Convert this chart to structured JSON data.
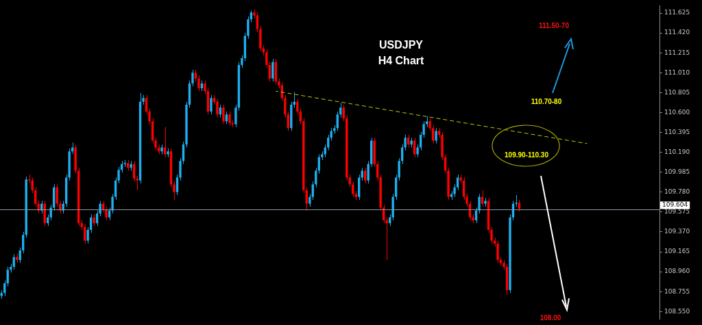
{
  "chart_data": {
    "type": "candlestick",
    "title": "USDJPY",
    "subtitle": "H4 Chart",
    "categories": [
      null,
      null,
      null,
      null,
      null,
      null,
      null,
      null,
      null,
      null,
      null,
      null,
      null,
      null,
      null,
      null,
      null,
      null,
      null,
      null,
      null,
      null,
      null,
      null,
      null,
      null,
      null,
      null,
      null,
      null,
      null,
      null,
      null,
      null,
      null,
      null,
      null,
      null,
      null,
      null,
      null,
      null,
      null,
      null,
      null,
      null,
      null,
      null,
      null,
      null,
      null,
      null,
      null,
      null,
      null,
      null,
      null,
      null,
      null,
      null,
      null,
      null,
      null,
      null,
      null,
      null,
      null,
      null,
      null,
      null,
      null,
      null,
      null,
      null,
      null,
      null,
      null,
      null,
      null,
      null,
      null,
      null,
      null,
      null,
      null,
      null,
      null,
      null,
      null,
      null,
      null,
      null,
      null,
      null,
      null,
      null,
      null,
      null,
      null,
      null,
      null,
      null,
      null,
      null,
      null,
      null,
      null,
      null,
      null,
      null,
      null,
      null,
      null,
      null,
      null,
      null,
      null,
      null,
      null,
      null,
      null,
      null,
      null,
      null,
      null,
      null,
      null,
      null,
      null,
      null,
      null,
      null,
      null,
      null,
      null,
      null,
      null,
      null,
      null,
      null,
      null,
      null,
      null,
      null,
      null,
      null,
      null,
      null,
      null,
      null,
      null,
      null,
      null,
      null,
      null,
      null,
      null,
      null,
      null,
      null,
      null,
      null,
      null,
      null,
      null,
      null,
      null,
      null,
      null,
      null,
      null,
      null,
      null,
      null,
      null,
      null,
      null,
      null,
      null,
      null,
      null,
      null,
      null,
      null,
      null,
      null,
      null,
      null,
      null,
      null,
      null,
      null,
      null,
      null,
      null,
      null,
      null,
      null,
      null,
      null,
      null,
      null,
      null,
      null,
      null,
      null,
      null,
      null,
      null,
      null,
      null,
      null,
      null,
      null
    ],
    "ohlc": [
      [
        108.71,
        108.77,
        108.68,
        108.74
      ],
      [
        108.74,
        108.87,
        108.71,
        108.84
      ],
      [
        108.84,
        109.01,
        108.81,
        108.98
      ],
      [
        108.98,
        109.04,
        108.95,
        109.01
      ],
      [
        109.01,
        109.14,
        108.98,
        109.11
      ],
      [
        109.11,
        109.14,
        109.05,
        109.08
      ],
      [
        109.08,
        109.21,
        109.05,
        109.18
      ],
      [
        109.18,
        109.37,
        109.15,
        109.34
      ],
      [
        109.34,
        109.94,
        109.31,
        109.91
      ],
      [
        109.91,
        109.96,
        109.87,
        109.9
      ],
      [
        109.9,
        109.93,
        109.77,
        109.8
      ],
      [
        109.8,
        109.83,
        109.63,
        109.66
      ],
      [
        109.66,
        109.69,
        109.56,
        109.59
      ],
      [
        109.59,
        109.69,
        109.56,
        109.66
      ],
      [
        109.66,
        109.69,
        109.43,
        109.46
      ],
      [
        109.46,
        109.55,
        109.43,
        109.52
      ],
      [
        109.52,
        109.65,
        109.49,
        109.62
      ],
      [
        109.62,
        109.86,
        109.59,
        109.83
      ],
      [
        109.83,
        109.86,
        109.63,
        109.66
      ],
      [
        109.66,
        109.69,
        109.56,
        109.59
      ],
      [
        109.59,
        109.69,
        109.56,
        109.66
      ],
      [
        109.66,
        109.96,
        109.63,
        109.93
      ],
      [
        109.93,
        110.23,
        109.9,
        110.2
      ],
      [
        110.2,
        110.29,
        110.17,
        110.24
      ],
      [
        110.24,
        110.27,
        109.97,
        110.0
      ],
      [
        110.0,
        110.03,
        109.43,
        109.46
      ],
      [
        109.46,
        109.49,
        109.39,
        109.42
      ],
      [
        109.42,
        109.45,
        109.25,
        109.28
      ],
      [
        109.28,
        109.42,
        109.25,
        109.39
      ],
      [
        109.39,
        109.55,
        109.36,
        109.52
      ],
      [
        109.52,
        109.55,
        109.43,
        109.46
      ],
      [
        109.46,
        109.59,
        109.43,
        109.56
      ],
      [
        109.56,
        109.69,
        109.53,
        109.66
      ],
      [
        109.66,
        109.69,
        109.57,
        109.6
      ],
      [
        109.6,
        109.63,
        109.49,
        109.52
      ],
      [
        109.52,
        109.62,
        109.49,
        109.59
      ],
      [
        109.59,
        109.76,
        109.56,
        109.73
      ],
      [
        109.73,
        109.93,
        109.7,
        109.9
      ],
      [
        109.9,
        110.04,
        109.87,
        110.01
      ],
      [
        110.01,
        110.1,
        109.98,
        110.07
      ],
      [
        110.07,
        110.11,
        110.04,
        110.08
      ],
      [
        110.08,
        110.11,
        110.0,
        110.03
      ],
      [
        110.03,
        110.1,
        110.0,
        110.07
      ],
      [
        110.07,
        110.1,
        109.89,
        109.92
      ],
      [
        109.92,
        109.95,
        109.8,
        109.9
      ],
      [
        109.9,
        110.8,
        109.87,
        110.71
      ],
      [
        110.71,
        110.78,
        110.68,
        110.75
      ],
      [
        110.75,
        110.78,
        110.58,
        110.61
      ],
      [
        110.61,
        110.64,
        110.48,
        110.51
      ],
      [
        110.51,
        110.54,
        110.28,
        110.31
      ],
      [
        110.31,
        110.34,
        110.21,
        110.24
      ],
      [
        110.24,
        110.27,
        110.17,
        110.2
      ],
      [
        110.2,
        110.27,
        110.17,
        110.24
      ],
      [
        110.24,
        110.45,
        110.14,
        110.17
      ],
      [
        110.17,
        110.23,
        110.14,
        110.2
      ],
      [
        110.2,
        110.23,
        109.83,
        109.86
      ],
      [
        109.86,
        109.89,
        109.7,
        109.78
      ],
      [
        109.78,
        109.96,
        109.75,
        109.93
      ],
      [
        109.93,
        110.13,
        109.9,
        110.1
      ],
      [
        110.1,
        110.3,
        110.07,
        110.27
      ],
      [
        110.27,
        110.71,
        110.24,
        110.68
      ],
      [
        110.68,
        110.93,
        110.65,
        110.9
      ],
      [
        110.9,
        111.04,
        110.87,
        111.01
      ],
      [
        111.01,
        111.04,
        110.92,
        110.95
      ],
      [
        110.95,
        110.98,
        110.82,
        110.85
      ],
      [
        110.85,
        110.93,
        110.82,
        110.9
      ],
      [
        110.9,
        110.93,
        110.79,
        110.82
      ],
      [
        110.82,
        110.85,
        110.58,
        110.61
      ],
      [
        110.61,
        110.78,
        110.58,
        110.75
      ],
      [
        110.75,
        110.78,
        110.68,
        110.71
      ],
      [
        110.71,
        110.74,
        110.55,
        110.58
      ],
      [
        110.58,
        110.68,
        110.55,
        110.65
      ],
      [
        110.65,
        110.68,
        110.48,
        110.51
      ],
      [
        110.51,
        110.61,
        110.48,
        110.58
      ],
      [
        110.58,
        110.61,
        110.46,
        110.49
      ],
      [
        110.49,
        110.52,
        110.45,
        110.48
      ],
      [
        110.48,
        110.68,
        110.45,
        110.65
      ],
      [
        110.65,
        111.12,
        110.62,
        111.09
      ],
      [
        111.09,
        111.19,
        111.06,
        111.16
      ],
      [
        111.16,
        111.42,
        111.13,
        111.39
      ],
      [
        111.39,
        111.59,
        111.36,
        111.56
      ],
      [
        111.56,
        111.65,
        111.53,
        111.63
      ],
      [
        111.63,
        111.66,
        111.57,
        111.6
      ],
      [
        111.6,
        111.63,
        111.43,
        111.46
      ],
      [
        111.46,
        111.49,
        111.23,
        111.26
      ],
      [
        111.26,
        111.29,
        111.19,
        111.22
      ],
      [
        111.22,
        111.25,
        111.06,
        111.09
      ],
      [
        111.09,
        111.12,
        110.92,
        110.95
      ],
      [
        110.95,
        111.15,
        110.92,
        111.12
      ],
      [
        111.12,
        111.15,
        110.89,
        110.92
      ],
      [
        110.92,
        110.95,
        110.85,
        110.88
      ],
      [
        110.88,
        110.91,
        110.72,
        110.75
      ],
      [
        110.75,
        110.78,
        110.55,
        110.58
      ],
      [
        110.58,
        110.61,
        110.41,
        110.44
      ],
      [
        110.44,
        110.71,
        110.41,
        110.68
      ],
      [
        110.68,
        110.81,
        110.65,
        110.71
      ],
      [
        110.71,
        110.74,
        110.58,
        110.61
      ],
      [
        110.61,
        110.64,
        110.48,
        110.51
      ],
      [
        110.51,
        110.54,
        109.77,
        109.8
      ],
      [
        109.8,
        109.83,
        109.59,
        109.66
      ],
      [
        109.66,
        109.76,
        109.63,
        109.73
      ],
      [
        109.73,
        109.89,
        109.7,
        109.86
      ],
      [
        109.86,
        110.03,
        109.83,
        110.0
      ],
      [
        110.0,
        110.17,
        109.97,
        110.14
      ],
      [
        110.14,
        110.2,
        110.11,
        110.17
      ],
      [
        110.17,
        110.27,
        110.14,
        110.24
      ],
      [
        110.24,
        110.37,
        110.21,
        110.34
      ],
      [
        110.34,
        110.44,
        110.31,
        110.41
      ],
      [
        110.41,
        110.47,
        110.38,
        110.44
      ],
      [
        110.44,
        110.61,
        110.41,
        110.58
      ],
      [
        110.58,
        110.7,
        110.55,
        110.65
      ],
      [
        110.65,
        110.68,
        110.51,
        110.54
      ],
      [
        110.54,
        110.57,
        109.9,
        109.93
      ],
      [
        109.93,
        109.96,
        109.83,
        109.86
      ],
      [
        109.86,
        109.89,
        109.73,
        109.76
      ],
      [
        109.76,
        109.79,
        109.7,
        109.73
      ],
      [
        109.73,
        109.96,
        109.7,
        109.93
      ],
      [
        109.93,
        110.03,
        109.9,
        110.0
      ],
      [
        110.0,
        110.03,
        109.87,
        109.9
      ],
      [
        109.9,
        110.1,
        109.87,
        110.07
      ],
      [
        110.07,
        110.34,
        110.04,
        110.31
      ],
      [
        110.31,
        110.34,
        110.04,
        110.07
      ],
      [
        110.07,
        110.1,
        109.9,
        109.93
      ],
      [
        109.93,
        109.96,
        109.59,
        109.62
      ],
      [
        109.62,
        109.65,
        109.46,
        109.49
      ],
      [
        109.49,
        109.52,
        109.08,
        109.46
      ],
      [
        109.46,
        109.55,
        109.43,
        109.52
      ],
      [
        109.52,
        109.76,
        109.49,
        109.73
      ],
      [
        109.73,
        109.96,
        109.7,
        109.93
      ],
      [
        109.93,
        110.13,
        109.9,
        110.1
      ],
      [
        110.1,
        110.27,
        110.07,
        110.24
      ],
      [
        110.24,
        110.37,
        110.21,
        110.34
      ],
      [
        110.34,
        110.37,
        110.24,
        110.27
      ],
      [
        110.27,
        110.34,
        110.24,
        110.31
      ],
      [
        110.31,
        110.34,
        110.14,
        110.17
      ],
      [
        110.17,
        110.27,
        110.14,
        110.24
      ],
      [
        110.24,
        110.4,
        110.21,
        110.37
      ],
      [
        110.37,
        110.51,
        110.34,
        110.48
      ],
      [
        110.48,
        110.56,
        110.45,
        110.51
      ],
      [
        110.51,
        110.54,
        110.41,
        110.44
      ],
      [
        110.44,
        110.47,
        110.28,
        110.31
      ],
      [
        110.31,
        110.44,
        110.28,
        110.41
      ],
      [
        110.41,
        110.44,
        110.34,
        110.37
      ],
      [
        110.37,
        110.4,
        110.11,
        110.14
      ],
      [
        110.14,
        110.17,
        109.97,
        110.0
      ],
      [
        110.0,
        110.03,
        109.7,
        109.73
      ],
      [
        109.73,
        109.79,
        109.7,
        109.76
      ],
      [
        109.76,
        109.86,
        109.73,
        109.83
      ],
      [
        109.83,
        109.96,
        109.8,
        109.93
      ],
      [
        109.93,
        109.96,
        109.87,
        109.9
      ],
      [
        109.9,
        109.93,
        109.7,
        109.73
      ],
      [
        109.73,
        109.76,
        109.63,
        109.66
      ],
      [
        109.66,
        109.69,
        109.49,
        109.52
      ],
      [
        109.52,
        109.55,
        109.46,
        109.49
      ],
      [
        109.49,
        109.62,
        109.46,
        109.59
      ],
      [
        109.59,
        109.76,
        109.56,
        109.73
      ],
      [
        109.73,
        109.8,
        109.63,
        109.66
      ],
      [
        109.66,
        109.72,
        109.63,
        109.69
      ],
      [
        109.69,
        109.72,
        109.36,
        109.39
      ],
      [
        109.39,
        109.42,
        109.25,
        109.28
      ],
      [
        109.28,
        109.31,
        109.22,
        109.25
      ],
      [
        109.25,
        109.28,
        109.05,
        109.08
      ],
      [
        109.08,
        109.11,
        109.02,
        109.05
      ],
      [
        109.05,
        109.08,
        108.98,
        109.01
      ],
      [
        109.01,
        109.04,
        108.72,
        108.77
      ],
      [
        108.77,
        109.55,
        108.74,
        109.52
      ],
      [
        109.52,
        109.69,
        109.49,
        109.66
      ],
      [
        109.66,
        109.75,
        109.63,
        109.67
      ],
      [
        109.67,
        109.7,
        109.58,
        109.61
      ],
      null,
      null,
      null,
      null,
      null,
      null,
      null,
      null,
      null,
      null,
      null,
      null,
      null,
      null,
      null,
      null,
      null,
      null,
      null,
      null,
      null,
      null,
      null,
      null,
      null,
      null,
      null,
      null,
      null,
      null,
      null,
      null,
      null,
      null,
      null,
      null,
      null,
      null,
      null,
      null,
      null,
      null,
      null,
      null,
      null
    ],
    "colors": [
      "#1eb0f0",
      "#1eb0f0",
      "#1eb0f0",
      "#1eb0f0",
      "#1eb0f0",
      "#ff0000",
      "#1eb0f0",
      "#1eb0f0",
      "#1eb0f0",
      "#ff0000",
      "#ff0000",
      "#ff0000",
      "#ff0000",
      "#1eb0f0",
      "#ff0000",
      "#1eb0f0",
      "#1eb0f0",
      "#1eb0f0",
      "#ff0000",
      "#ff0000",
      "#1eb0f0",
      "#1eb0f0",
      "#1eb0f0",
      "#1eb0f0",
      "#ff0000",
      "#ff0000",
      "#ff0000",
      "#ff0000",
      "#1eb0f0",
      "#1eb0f0",
      "#ff0000",
      "#1eb0f0",
      "#1eb0f0",
      "#ff0000",
      "#ff0000",
      "#1eb0f0",
      "#1eb0f0",
      "#1eb0f0",
      "#1eb0f0",
      "#1eb0f0",
      "#1eb0f0",
      "#ff0000",
      "#1eb0f0",
      "#ff0000",
      "#ff0000",
      "#1eb0f0",
      "#1eb0f0",
      "#ff0000",
      "#ff0000",
      "#ff0000",
      "#ff0000",
      "#ff0000",
      "#1eb0f0",
      "#ff0000",
      "#1eb0f0",
      "#ff0000",
      "#ff0000",
      "#1eb0f0",
      "#1eb0f0",
      "#1eb0f0",
      "#1eb0f0",
      "#1eb0f0",
      "#1eb0f0",
      "#ff0000",
      "#ff0000",
      "#1eb0f0",
      "#ff0000",
      "#ff0000",
      "#1eb0f0",
      "#ff0000",
      "#ff0000",
      "#1eb0f0",
      "#ff0000",
      "#1eb0f0",
      "#ff0000",
      "#ff0000",
      "#1eb0f0",
      "#1eb0f0",
      "#1eb0f0",
      "#1eb0f0",
      "#1eb0f0",
      "#1eb0f0",
      "#ff0000",
      "#ff0000",
      "#ff0000",
      "#ff0000",
      "#ff0000",
      "#ff0000",
      "#1eb0f0",
      "#ff0000",
      "#ff0000",
      "#ff0000",
      "#ff0000",
      "#ff0000",
      "#1eb0f0",
      "#1eb0f0",
      "#ff0000",
      "#ff0000",
      "#ff0000",
      "#ff0000",
      "#1eb0f0",
      "#1eb0f0",
      "#1eb0f0",
      "#1eb0f0",
      "#1eb0f0",
      "#1eb0f0",
      "#1eb0f0",
      "#1eb0f0",
      "#1eb0f0",
      "#1eb0f0",
      "#1eb0f0",
      "#ff0000",
      "#ff0000",
      "#ff0000",
      "#ff0000",
      "#ff0000",
      "#1eb0f0",
      "#1eb0f0",
      "#ff0000",
      "#1eb0f0",
      "#1eb0f0",
      "#ff0000",
      "#ff0000",
      "#ff0000",
      "#ff0000",
      "#ff0000",
      "#1eb0f0",
      "#1eb0f0",
      "#1eb0f0",
      "#1eb0f0",
      "#1eb0f0",
      "#1eb0f0",
      "#ff0000",
      "#1eb0f0",
      "#ff0000",
      "#1eb0f0",
      "#1eb0f0",
      "#1eb0f0",
      "#1eb0f0",
      "#ff0000",
      "#ff0000",
      "#1eb0f0",
      "#ff0000",
      "#ff0000",
      "#ff0000",
      "#ff0000",
      "#1eb0f0",
      "#1eb0f0",
      "#1eb0f0",
      "#ff0000",
      "#ff0000",
      "#ff0000",
      "#ff0000",
      "#ff0000",
      "#1eb0f0",
      "#1eb0f0",
      "#ff0000",
      "#1eb0f0",
      "#ff0000",
      "#ff0000",
      "#ff0000",
      "#ff0000",
      "#ff0000",
      "#ff0000",
      "#ff0000",
      "#1eb0f0",
      "#1eb0f0",
      "#1eb0f0",
      "#ff0000",
      null,
      null,
      null,
      null,
      null,
      null,
      null,
      null,
      null,
      null,
      null,
      null,
      null,
      null,
      null,
      null,
      null,
      null,
      null,
      null,
      null,
      null,
      null,
      null,
      null,
      null,
      null,
      null,
      null,
      null,
      null,
      null,
      null,
      null,
      null,
      null,
      null,
      null,
      null,
      null,
      null,
      null,
      null,
      null,
      null
    ],
    "ylim": [
      108.47,
      111.7
    ],
    "yticks": [
      {
        "value": 111.625,
        "label": "111.625"
      },
      {
        "value": 111.42,
        "label": "111.420"
      },
      {
        "value": 111.215,
        "label": "111.215"
      },
      {
        "value": 111.01,
        "label": "111.010"
      },
      {
        "value": 110.805,
        "label": "110.805"
      },
      {
        "value": 110.6,
        "label": "110.600"
      },
      {
        "value": 110.395,
        "label": "110.395"
      },
      {
        "value": 110.19,
        "label": "110.190"
      },
      {
        "value": 109.985,
        "label": "109.985"
      },
      {
        "value": 109.78,
        "label": "109.780"
      },
      {
        "value": 109.575,
        "label": "109.575"
      },
      {
        "value": 109.37,
        "label": "109.370"
      },
      {
        "value": 109.165,
        "label": "109.165"
      },
      {
        "value": 108.96,
        "label": "108.960"
      },
      {
        "value": 108.755,
        "label": "108.755"
      },
      {
        "value": 108.55,
        "label": "108.550"
      }
    ],
    "tick_labels": "y",
    "grid": false,
    "legend": false,
    "ref_lines": [
      {
        "axis": "y",
        "value": 109.604,
        "label": "109.604",
        "color": "#8a97a8"
      }
    ],
    "annotations": [
      "111.50-70",
      "110.70-80",
      "109.90-110.30",
      "108.00"
    ],
    "series": [
      {
        "type": "line",
        "color": "#c8c800",
        "line_style": "dashed",
        "values": [
          null,
          null,
          null,
          null,
          null,
          null,
          null,
          null,
          null,
          null,
          null,
          null,
          null,
          null,
          null,
          null,
          null,
          null,
          null,
          null,
          null,
          null,
          null,
          null,
          null,
          null,
          null,
          null,
          null,
          null,
          null,
          null,
          null,
          null,
          null,
          null,
          null,
          null,
          null,
          null,
          null,
          null,
          null,
          null,
          null,
          null,
          null,
          null,
          null,
          null,
          null,
          null,
          null,
          null,
          null,
          null,
          null,
          null,
          null,
          null,
          null,
          null,
          null,
          null,
          null,
          null,
          null,
          null,
          null,
          null,
          null,
          null,
          null,
          null,
          null,
          null,
          null,
          null,
          null,
          null,
          null,
          null,
          null,
          null,
          null,
          null,
          null,
          null,
          null,
          110.82,
          null,
          null,
          null,
          null,
          null,
          null,
          null,
          null,
          null,
          null,
          null,
          null,
          null,
          null,
          null,
          null,
          null,
          null,
          null,
          null,
          null,
          null,
          null,
          null,
          null,
          null,
          null,
          null,
          null,
          null,
          null,
          null,
          null,
          null,
          null,
          null,
          null,
          null,
          null,
          null,
          null,
          null,
          null,
          null,
          null,
          null,
          null,
          null,
          null,
          null,
          null,
          null,
          null,
          null,
          null,
          null,
          null,
          null,
          null,
          null,
          null,
          null,
          null,
          null,
          null,
          null,
          null,
          null,
          null,
          null,
          null,
          null,
          null,
          null,
          null,
          null,
          null,
          null,
          null,
          null,
          null,
          null,
          null,
          null,
          null,
          null,
          null,
          null,
          null,
          null,
          null,
          null,
          null,
          null,
          null,
          null,
          null,
          null,
          null,
          null,
          110.28,
          null,
          null,
          null,
          null,
          null,
          null,
          null,
          null,
          null,
          null,
          null,
          null,
          null,
          null,
          null,
          null,
          null,
          null,
          null,
          null,
          null,
          null,
          null
        ]
      }
    ]
  }
}
